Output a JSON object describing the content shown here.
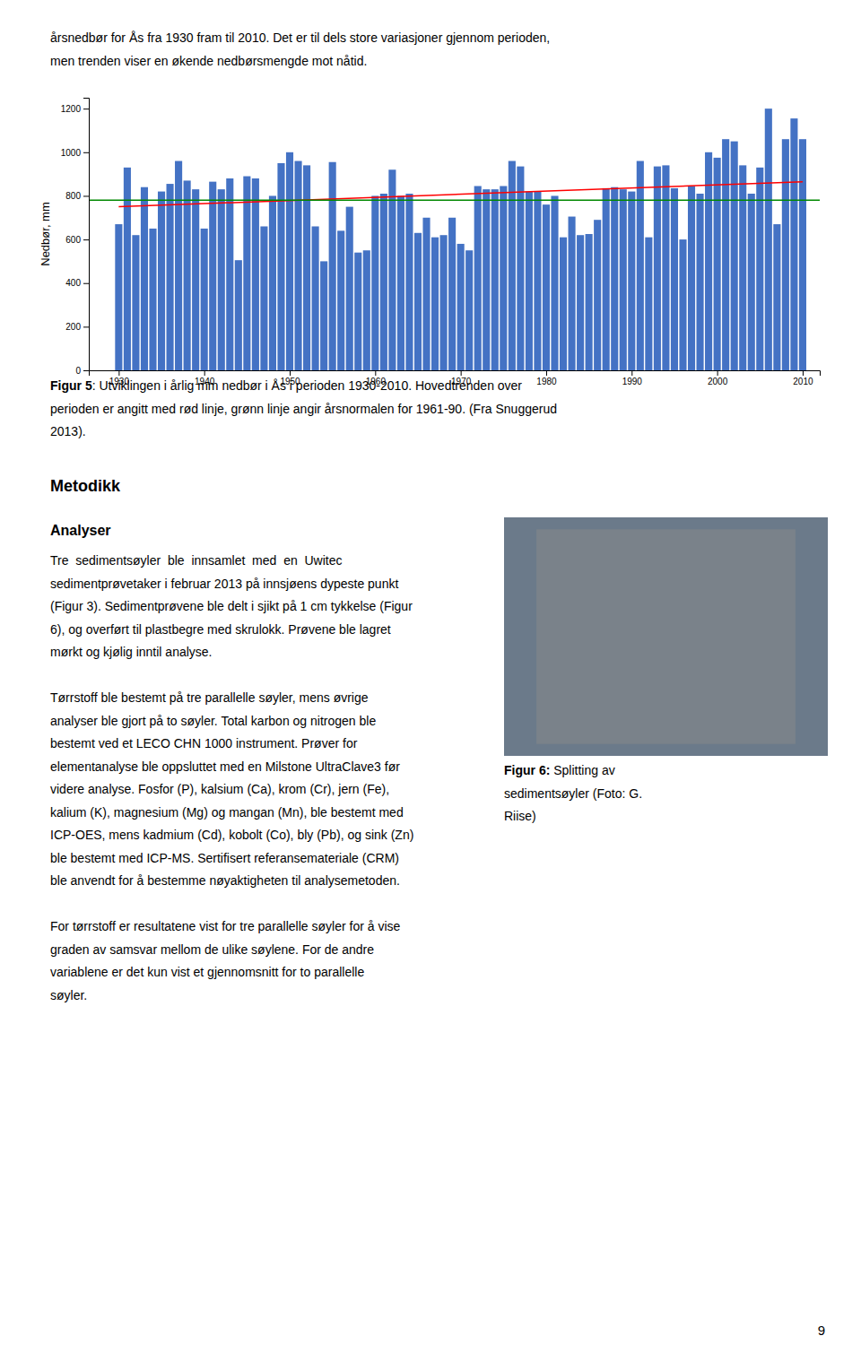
{
  "chart_data": {
    "type": "bar",
    "x": [
      1930,
      1931,
      1932,
      1933,
      1934,
      1935,
      1936,
      1937,
      1938,
      1939,
      1940,
      1941,
      1942,
      1943,
      1944,
      1945,
      1946,
      1947,
      1948,
      1949,
      1950,
      1951,
      1952,
      1953,
      1954,
      1955,
      1956,
      1957,
      1958,
      1959,
      1960,
      1961,
      1962,
      1963,
      1964,
      1965,
      1966,
      1967,
      1968,
      1969,
      1970,
      1971,
      1972,
      1973,
      1974,
      1975,
      1976,
      1977,
      1978,
      1979,
      1980,
      1981,
      1982,
      1983,
      1984,
      1985,
      1986,
      1987,
      1988,
      1989,
      1990,
      1991,
      1992,
      1993,
      1994,
      1995,
      1996,
      1997,
      1998,
      1999,
      2000,
      2001,
      2002,
      2003,
      2004,
      2005,
      2006,
      2007,
      2008,
      2009,
      2010
    ],
    "values": [
      670,
      930,
      620,
      840,
      650,
      820,
      855,
      960,
      870,
      830,
      650,
      865,
      830,
      880,
      505,
      890,
      880,
      660,
      800,
      950,
      1000,
      960,
      940,
      660,
      500,
      955,
      640,
      750,
      540,
      550,
      800,
      810,
      920,
      800,
      810,
      630,
      700,
      610,
      620,
      700,
      580,
      550,
      845,
      830,
      830,
      845,
      960,
      935,
      820,
      820,
      760,
      800,
      610,
      705,
      620,
      625,
      690,
      835,
      840,
      830,
      820,
      960,
      610,
      935,
      940,
      835,
      600,
      845,
      810,
      1000,
      975,
      1060,
      1050,
      940,
      810,
      930,
      1200,
      670,
      1060,
      1155,
      1060
    ],
    "color": "#4472C4",
    "ylabel": "Nedbør, mm",
    "xlim": [
      1926.5,
      2012
    ],
    "ylim": [
      0,
      1250
    ],
    "xticks": [
      1930,
      1940,
      1950,
      1960,
      1970,
      1980,
      1990,
      2000,
      2010
    ],
    "yticks": [
      0,
      200,
      400,
      600,
      800,
      1000,
      1200
    ],
    "grid": false,
    "trend_line": {
      "x": [
        1930,
        2010
      ],
      "values": [
        750,
        865
      ],
      "color": "#FF0000"
    },
    "normal_line": {
      "value": 780,
      "color": "#008800"
    }
  },
  "page_text": {
    "top_lines": [
      "årsnedbør for Ås fra 1930 fram til 2010. Det er til dels store variasjoner gjennom perioden,",
      "men trenden viser en økende nedbørsmengde mot nåtid."
    ],
    "figure5_caption": {
      "bold": "Figur 5",
      "lines": [
        ": Utviklingen i årlig mm nedbør i Ås i perioden 1930-2010. Hovedtrenden over",
        "perioden er angitt med rød linje, grønn linje angir årsnormalen for 1961-90. (Fra Snuggerud",
        "2013)."
      ]
    },
    "headings": [
      "Metodikk",
      "Analyser"
    ],
    "paragraphs": [
      [
        "Tre  sedimentsøyler  ble  innsamlet  med  en  Uwitec",
        "sedimentprøvetaker i februar 2013 på innsjøens dypeste punkt",
        "(Figur 3). Sedimentprøvene ble delt i sjikt på 1 cm tykkelse (Figur",
        "6), og overført til plastbegre med skrulokk. Prøvene ble lagret",
        "mørkt og kjølig inntil analyse."
      ],
      [
        "Tørrstoff ble bestemt på tre parallelle søyler, mens øvrige",
        "analyser ble gjort på to søyler. Total karbon og nitrogen ble",
        "bestemt ved et LECO CHN 1000 instrument. Prøver for",
        "elementanalyse ble oppsluttet med en Milstone UltraClave3 før",
        "videre analyse. Fosfor (P), kalsium (Ca), krom (Cr), jern (Fe),",
        "kalium (K), magnesium (Mg) og mangan (Mn), ble bestemt med",
        "ICP-OES, mens kadmium (Cd), kobolt (Co), bly (Pb), og sink (Zn)",
        "ble bestemt med ICP-MS. Sertifisert referansemateriale (CRM)",
        "ble anvendt for å bestemme nøyaktigheten til analysemetoden."
      ],
      [
        "For tørrstoff er resultatene vist for tre parallelle søyler for å vise",
        "graden av samsvar mellom de ulike søylene. For de andre",
        "variablene er det kun vist et gjennomsnitt for to parallelle",
        "søyler."
      ]
    ],
    "figure6_caption": {
      "bold": "Figur 6:",
      "lines": [
        " Splitting av",
        "sedimentsøyler (Foto: G.",
        "Riise)"
      ]
    },
    "page_number": "9"
  }
}
